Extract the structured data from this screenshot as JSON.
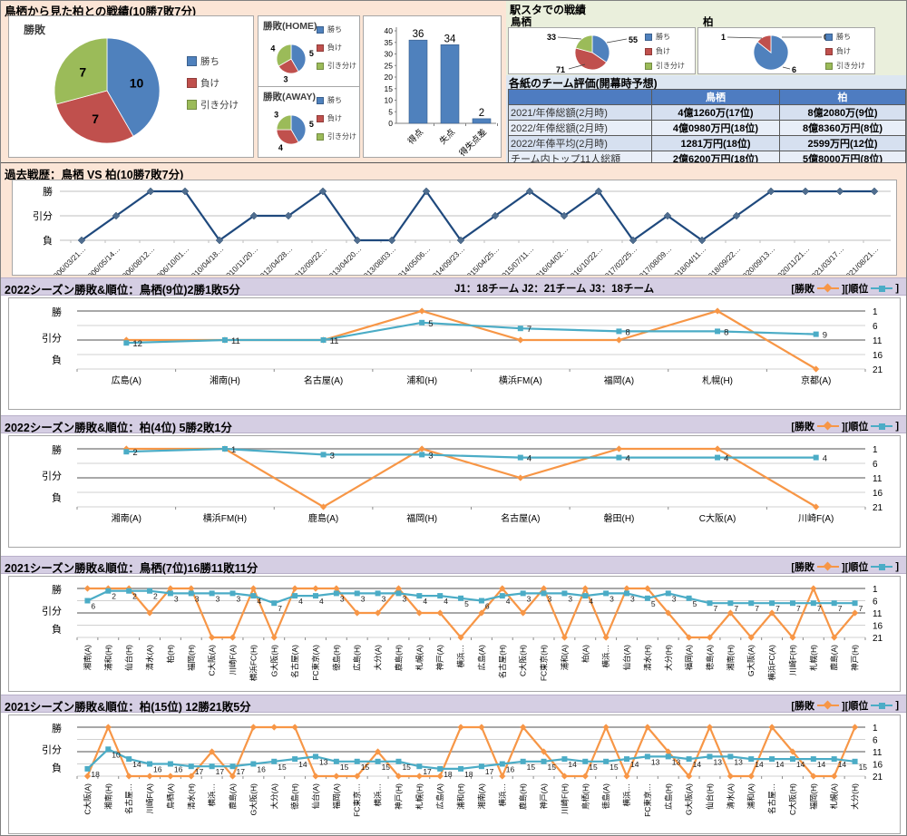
{
  "palette": {
    "win_blue": "#4F81BD",
    "lose_red": "#C0504D",
    "draw_green": "#9BBB59",
    "orange": "#F79646",
    "teal": "#4BACC6",
    "navy": "#1F497D"
  },
  "section1": {
    "title": "鳥栖から見た柏との戦績(10勝7敗7分)",
    "legend_labels": [
      "勝ち",
      "負け",
      "引き分け"
    ],
    "ekista": {
      "title": "駅スタでの戦績",
      "team_left": "鳥栖",
      "team_right": "柏"
    },
    "table": {
      "title": "各紙のチーム評価(開幕時予想)",
      "columns": [
        "鳥栖",
        "柏"
      ],
      "rows": [
        {
          "label": "2021/年俸総額(2月時)",
          "tosu": "4億1260万(17位)",
          "kashiwa": "8億2080万(9位)"
        },
        {
          "label": "2022/年俸総額(2月時)",
          "tosu": "4億0980万円(18位)",
          "kashiwa": "8億8360万円(8位)"
        },
        {
          "label": "2022/年俸平均(2月時)",
          "tosu": "1281万円(18位)",
          "kashiwa": "2599万円(12位)"
        },
        {
          "label": "チーム内トップ11人総額",
          "tosu": "2億6200万円(18位)",
          "kashiwa": "5億8000万円(8位)"
        }
      ]
    }
  },
  "history_title": "過去戦歴：鳥栖 VS 柏(10勝7敗7分)",
  "season_headers": [
    {
      "title": "2022シーズン勝敗&順位：鳥栖(9位)2勝1敗5分",
      "info": "J1：18チーム  J2：21チーム  J3：18チーム",
      "l1": "[勝敗",
      "l2": "][順位",
      "l3": "]"
    },
    {
      "title": "2022シーズン勝敗&順位：柏(4位) 5勝2敗1分",
      "info": "",
      "l1": "[勝敗",
      "l2": "][順位",
      "l3": "]"
    },
    {
      "title": "2021シーズン勝敗&順位：鳥栖(7位)16勝11敗11分",
      "info": "",
      "l1": "[勝敗",
      "l2": "][順位",
      "l3": "]"
    },
    {
      "title": "2021シーズン勝敗&順位：柏(15位) 12勝21敗5分",
      "info": "",
      "l1": "[勝敗",
      "l2": "][順位",
      "l3": "]"
    }
  ],
  "chart_data": [
    {
      "id": "pie-main",
      "type": "pie",
      "title": "勝敗",
      "labels": [
        "勝ち",
        "負け",
        "引き分け"
      ],
      "values": [
        10,
        7,
        7
      ]
    },
    {
      "id": "pie-home",
      "type": "pie",
      "title": "勝敗(HOME)",
      "labels": [
        "勝ち",
        "負け",
        "引き分け"
      ],
      "values": [
        5,
        3,
        4
      ]
    },
    {
      "id": "pie-away",
      "type": "pie",
      "title": "勝敗(AWAY)",
      "labels": [
        "勝ち",
        "負け",
        "引き分け"
      ],
      "values": [
        5,
        4,
        3
      ]
    },
    {
      "id": "bar-goals",
      "type": "bar",
      "categories": [
        "得点",
        "失点",
        "得失点差"
      ],
      "values": [
        36,
        34,
        2
      ],
      "ylim": [
        0,
        40
      ],
      "ytick_step": 5
    },
    {
      "id": "pie-ek-tosu",
      "type": "pie",
      "title": "鳥栖",
      "labels": [
        "勝ち",
        "負け",
        "引き分け"
      ],
      "values": [
        55,
        71,
        33
      ]
    },
    {
      "id": "pie-ek-kashiwa",
      "type": "pie",
      "title": "柏",
      "labels": [
        "勝ち",
        "負け",
        "引き分け"
      ],
      "values": [
        6,
        1,
        0
      ]
    },
    {
      "id": "hist-chart",
      "type": "line",
      "title": "過去戦歴：鳥栖 VS 柏(10勝7敗7分)",
      "yticks": [
        "勝",
        "引分",
        "負"
      ],
      "x": [
        "2006/03/21…",
        "2006/05/14…",
        "2006/08/12…",
        "2006/10/01…",
        "2010/04/18…",
        "2010/11/20…",
        "2012/04/28…",
        "2012/09/22…",
        "2013/04/20…",
        "2013/08/03…",
        "2014/05/06…",
        "2014/09/23…",
        "2015/04/25…",
        "2015/07/11…",
        "2016/04/02…",
        "2016/10/22…",
        "2017/02/25…",
        "2017/08/09…",
        "2018/04/11…",
        "2018/09/22…",
        "2020/09/13…",
        "2020/11/21…",
        "2021/03/17…",
        "2021/08/21…"
      ],
      "values": [
        "負",
        "引分",
        "勝",
        "勝",
        "負",
        "引分",
        "引分",
        "勝",
        "負",
        "負",
        "勝",
        "負",
        "引分",
        "勝",
        "引分",
        "勝",
        "負",
        "引分",
        "負",
        "引分",
        "勝",
        "勝",
        "勝",
        "勝"
      ]
    },
    {
      "id": "season-0",
      "type": "line",
      "title": "2022シーズン勝敗&順位：鳥栖(9位)2勝1敗5分",
      "left_axis": [
        "勝",
        "引分",
        "負"
      ],
      "right_axis": [
        1,
        6,
        11,
        16,
        21
      ],
      "categories": [
        "広島(A)",
        "湘南(H)",
        "名古屋(A)",
        "浦和(H)",
        "横浜FM(A)",
        "福岡(A)",
        "札幌(H)",
        "京都(A)"
      ],
      "series": [
        {
          "name": "勝敗",
          "values": [
            "引分",
            "引分",
            "引分",
            "勝",
            "引分",
            "引分",
            "勝",
            "負"
          ]
        },
        {
          "name": "順位",
          "values": [
            12,
            11,
            11,
            5,
            7,
            8,
            8,
            9
          ]
        }
      ]
    },
    {
      "id": "season-1",
      "type": "line",
      "title": "2022シーズン勝敗&順位：柏(4位) 5勝2敗1分",
      "left_axis": [
        "勝",
        "引分",
        "負"
      ],
      "right_axis": [
        1,
        6,
        11,
        16,
        21
      ],
      "categories": [
        "湘南(A)",
        "横浜FM(H)",
        "鹿島(A)",
        "福岡(H)",
        "名古屋(A)",
        "磐田(H)",
        "C大阪(A)",
        "川崎F(A)"
      ],
      "series": [
        {
          "name": "勝敗",
          "values": [
            "勝",
            "勝",
            "負",
            "勝",
            "引分",
            "勝",
            "勝",
            "負"
          ]
        },
        {
          "name": "順位",
          "values": [
            2,
            1,
            3,
            3,
            4,
            4,
            4,
            4
          ]
        }
      ]
    },
    {
      "id": "season-2",
      "type": "line",
      "title": "2021シーズン勝敗&順位：鳥栖(7位)16勝11敗11分",
      "left_axis": [
        "勝",
        "引分",
        "負"
      ],
      "right_axis": [
        1,
        6,
        11,
        16,
        21
      ],
      "categories": [
        "湘南(A)",
        "浦和(H)",
        "仙台(H)",
        "清水(A)",
        "柏(H)",
        "福岡(H)",
        "C大阪(A)",
        "川崎F(A)",
        "横浜FC(H)",
        "G大阪(H)",
        "名古屋(A)",
        "FC東京(A)",
        "徳島(H)",
        "広島(H)",
        "大分(A)",
        "鹿島(H)",
        "札幌(A)",
        "神戸(A)",
        "横浜…",
        "広島(A)",
        "名古屋(H)",
        "C大阪(H)",
        "FC東京(H)",
        "浦和(A)",
        "柏(A)",
        "横浜…",
        "仙台(A)",
        "清水(H)",
        "大分(H)",
        "福岡(A)",
        "徳島(A)",
        "湘南(H)",
        "G大阪(A)",
        "横浜FC(A)",
        "川崎F(H)",
        "札幌(H)",
        "鹿島(A)",
        "神戸(H)"
      ],
      "series": [
        {
          "name": "勝敗",
          "values": [
            "勝",
            "勝",
            "勝",
            "引分",
            "勝",
            "勝",
            "負",
            "負",
            "勝",
            "負",
            "勝",
            "勝",
            "勝",
            "引分",
            "引分",
            "勝",
            "引分",
            "引分",
            "負",
            "引分",
            "勝",
            "引分",
            "勝",
            "負",
            "勝",
            "負",
            "勝",
            "勝",
            "引分",
            "負",
            "負",
            "引分",
            "負",
            "引分",
            "負",
            "勝",
            "負",
            "引分"
          ]
        },
        {
          "name": "順位",
          "values": [
            6,
            2,
            2,
            2,
            3,
            3,
            3,
            3,
            4,
            7,
            4,
            4,
            3,
            3,
            3,
            3,
            4,
            4,
            5,
            6,
            4,
            3,
            3,
            3,
            4,
            3,
            3,
            5,
            3,
            5,
            7,
            7,
            7,
            7,
            7,
            7,
            7,
            7
          ]
        }
      ]
    },
    {
      "id": "season-3",
      "type": "line",
      "title": "2021シーズン勝敗&順位：柏(15位) 12勝21敗5分",
      "left_axis": [
        "勝",
        "引分",
        "負"
      ],
      "right_axis": [
        1,
        6,
        11,
        16,
        21
      ],
      "categories": [
        "C大阪(A)",
        "湘南(H)",
        "名古屋…",
        "川崎F(A)",
        "鳥栖(A)",
        "清水(H)",
        "横浜…",
        "鹿島(A)",
        "G大阪(H)",
        "大分(A)",
        "徳島(H)",
        "仙台(A)",
        "福岡(A)",
        "FC東京…",
        "横浜…",
        "神戸(H)",
        "札幌(H)",
        "広島(A)",
        "浦和(H)",
        "湘南(A)",
        "横浜…",
        "鹿島(H)",
        "神戸(A)",
        "川崎F(H)",
        "鳥栖(H)",
        "徳島(A)",
        "横浜…",
        "FC東京…",
        "広島(H)",
        "G大阪(A)",
        "仙台(H)",
        "清水(A)",
        "浦和(A)",
        "名古屋…",
        "C大阪(H)",
        "福岡(H)",
        "札幌(A)",
        "大分(H)"
      ],
      "series": [
        {
          "name": "勝敗",
          "values": [
            "負",
            "勝",
            "負",
            "負",
            "負",
            "負",
            "引分",
            "負",
            "勝",
            "勝",
            "勝",
            "負",
            "負",
            "負",
            "引分",
            "負",
            "負",
            "負",
            "勝",
            "勝",
            "負",
            "勝",
            "引分",
            "負",
            "負",
            "勝",
            "負",
            "勝",
            "引分",
            "負",
            "勝",
            "負",
            "負",
            "勝",
            "引分",
            "負",
            "負",
            "勝"
          ]
        },
        {
          "name": "順位",
          "values": [
            18,
            10,
            14,
            16,
            16,
            17,
            17,
            17,
            16,
            15,
            14,
            13,
            15,
            15,
            15,
            15,
            17,
            18,
            18,
            17,
            16,
            15,
            15,
            14,
            15,
            15,
            14,
            13,
            13,
            14,
            13,
            13,
            14,
            14,
            14,
            14,
            14,
            15
          ]
        }
      ]
    }
  ]
}
